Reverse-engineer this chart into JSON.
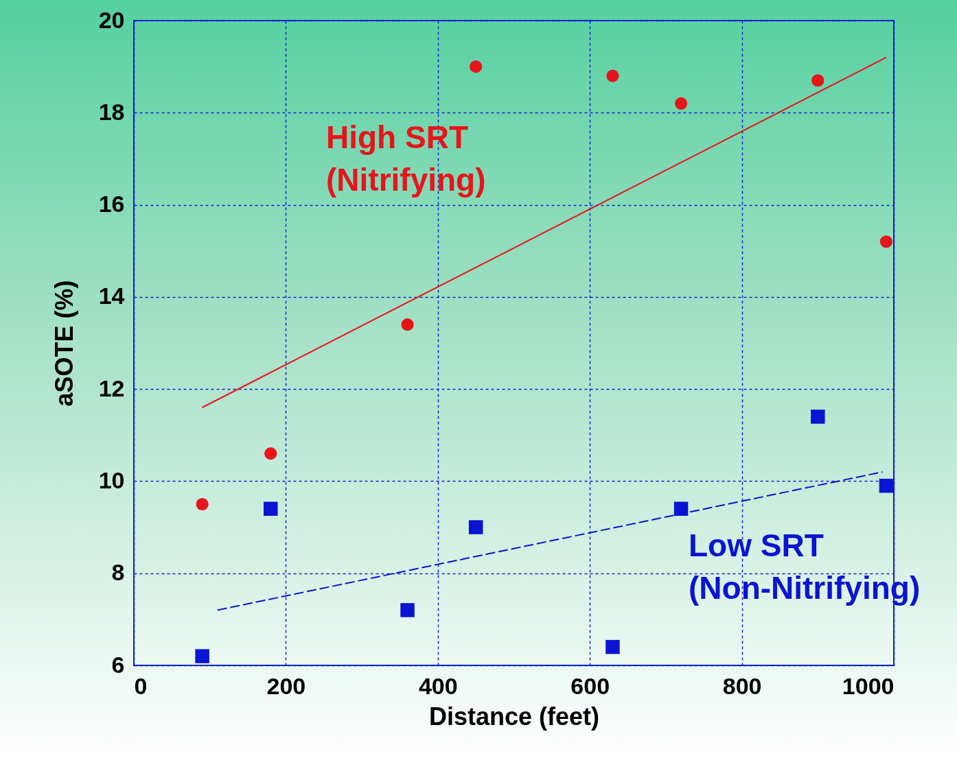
{
  "chart_data": {
    "type": "scatter",
    "xlabel": "Distance (feet)",
    "ylabel": "aSOTE (%)",
    "xlim": [
      0,
      1000
    ],
    "xticks": [
      0,
      200,
      400,
      600,
      800,
      1000
    ],
    "ylim": [
      6,
      20
    ],
    "yticks": [
      6,
      8,
      10,
      12,
      14,
      16,
      18,
      20
    ],
    "grid": true,
    "series": [
      {
        "name": "High SRT\n(Nitrifying)",
        "marker": "circle",
        "color": "#e8141b",
        "x": [
          90,
          180,
          360,
          450,
          630,
          720,
          900,
          990
        ],
        "values": [
          9.5,
          10.6,
          13.4,
          19.0,
          18.8,
          18.2,
          18.7,
          15.2
        ]
      },
      {
        "name": "Low SRT\n(Non-Nitrifying)",
        "marker": "square",
        "color": "#0a14d2",
        "x": [
          90,
          180,
          360,
          450,
          630,
          720,
          900,
          990
        ],
        "values": [
          6.2,
          9.4,
          7.2,
          9.0,
          6.4,
          9.4,
          11.4,
          9.9
        ]
      },
      {
        "type": "line",
        "marker": "none",
        "line_style": "solid",
        "color": "#e8141b",
        "x": [
          90,
          990
        ],
        "values": [
          11.6,
          19.2
        ]
      },
      {
        "type": "line",
        "marker": "none",
        "line_style": "dashed",
        "color": "#0a14d2",
        "x": [
          110,
          985
        ],
        "values": [
          7.2,
          10.2
        ]
      }
    ]
  }
}
